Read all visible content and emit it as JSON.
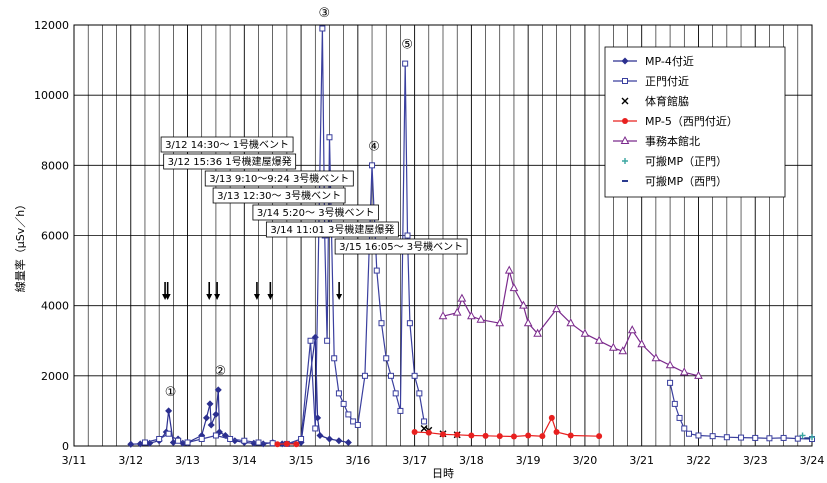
{
  "chart_data": {
    "type": "scatter",
    "title": "",
    "xlabel": "日時",
    "ylabel": "線量率（μSv／h）",
    "xlim": [
      "3/11",
      "3/24"
    ],
    "ylim": [
      0,
      12000
    ],
    "x_tick_labels": [
      "3/11",
      "3/12",
      "3/13",
      "3/14",
      "3/15",
      "3/16",
      "3/17",
      "3/18",
      "3/19",
      "3/20",
      "3/21",
      "3/22",
      "3/23",
      "3/24"
    ],
    "y_tick_labels": [
      "0",
      "2000",
      "4000",
      "6000",
      "8000",
      "10000",
      "12000"
    ],
    "grid": true,
    "legend_position": "top-right",
    "series": [
      {
        "name": "MP-4付近",
        "marker": "diamond",
        "color": "#2b2f8f",
        "points": [
          [
            "3/12 00:00",
            50
          ],
          [
            "3/12 04:00",
            60
          ],
          [
            "3/12 08:00",
            80
          ],
          [
            "3/12 12:00",
            150
          ],
          [
            "3/12 15:00",
            400
          ],
          [
            "3/12 16:00",
            1000
          ],
          [
            "3/12 18:00",
            100
          ],
          [
            "3/12 20:00",
            200
          ],
          [
            "3/12 22:00",
            80
          ],
          [
            "3/13 00:00",
            100
          ],
          [
            "3/13 06:00",
            300
          ],
          [
            "3/13 08:00",
            800
          ],
          [
            "3/13 09:30",
            1200
          ],
          [
            "3/13 10:00",
            600
          ],
          [
            "3/13 12:00",
            900
          ],
          [
            "3/13 13:00",
            1600
          ],
          [
            "3/13 13:30",
            400
          ],
          [
            "3/13 16:00",
            300
          ],
          [
            "3/13 20:00",
            150
          ],
          [
            "3/14 00:00",
            100
          ],
          [
            "3/14 04:00",
            80
          ],
          [
            "3/14 08:00",
            60
          ],
          [
            "3/14 12:00",
            100
          ],
          [
            "3/14 16:00",
            60
          ],
          [
            "3/15 00:00",
            100
          ],
          [
            "3/15 06:00",
            3100
          ],
          [
            "3/15 07:00",
            800
          ],
          [
            "3/15 08:00",
            300
          ],
          [
            "3/15 12:00",
            200
          ],
          [
            "3/15 16:00",
            150
          ],
          [
            "3/15 20:00",
            100
          ]
        ]
      },
      {
        "name": "正門付近",
        "marker": "square-open",
        "color": "#3a3f9e",
        "points": [
          [
            "3/12 06:00",
            100
          ],
          [
            "3/12 12:00",
            200
          ],
          [
            "3/12 16:00",
            350
          ],
          [
            "3/12 20:00",
            150
          ],
          [
            "3/13 00:00",
            100
          ],
          [
            "3/13 06:00",
            200
          ],
          [
            "3/13 12:00",
            300
          ],
          [
            "3/13 18:00",
            200
          ],
          [
            "3/14 00:00",
            150
          ],
          [
            "3/14 06:00",
            100
          ],
          [
            "3/14 12:00",
            80
          ],
          [
            "3/14 18:00",
            60
          ],
          [
            "3/15 00:00",
            200
          ],
          [
            "3/15 04:00",
            3000
          ],
          [
            "3/15 06:00",
            500
          ],
          [
            "3/15 09:00",
            11900
          ],
          [
            "3/15 10:00",
            6000
          ],
          [
            "3/15 11:00",
            3000
          ],
          [
            "3/15 12:00",
            8800
          ],
          [
            "3/15 14:00",
            2500
          ],
          [
            "3/15 16:00",
            1500
          ],
          [
            "3/15 18:00",
            1200
          ],
          [
            "3/15 20:00",
            900
          ],
          [
            "3/15 22:00",
            700
          ],
          [
            "3/16 00:00",
            600
          ],
          [
            "3/16 03:00",
            2000
          ],
          [
            "3/16 06:00",
            8000
          ],
          [
            "3/16 08:00",
            5000
          ],
          [
            "3/16 10:00",
            3500
          ],
          [
            "3/16 12:00",
            2500
          ],
          [
            "3/16 14:00",
            2000
          ],
          [
            "3/16 16:00",
            1500
          ],
          [
            "3/16 18:00",
            1000
          ],
          [
            "3/16 20:00",
            10900
          ],
          [
            "3/16 21:00",
            6000
          ],
          [
            "3/16 22:00",
            3500
          ],
          [
            "3/17 00:00",
            2000
          ],
          [
            "3/17 02:00",
            1500
          ],
          [
            "3/17 04:00",
            700
          ],
          [
            "3/21 12:00",
            1800
          ],
          [
            "3/21 14:00",
            1200
          ],
          [
            "3/21 16:00",
            800
          ],
          [
            "3/21 18:00",
            500
          ],
          [
            "3/21 20:00",
            350
          ],
          [
            "3/22 00:00",
            300
          ],
          [
            "3/22 06:00",
            280
          ],
          [
            "3/22 12:00",
            250
          ],
          [
            "3/22 18:00",
            240
          ],
          [
            "3/23 00:00",
            230
          ],
          [
            "3/23 06:00",
            220
          ],
          [
            "3/23 12:00",
            230
          ],
          [
            "3/23 18:00",
            210
          ],
          [
            "3/24 00:00",
            200
          ]
        ]
      },
      {
        "name": "体育館脇",
        "marker": "x",
        "color": "#000000",
        "points": [
          [
            "3/17 04:00",
            500
          ],
          [
            "3/17 06:00",
            450
          ],
          [
            "3/17 12:00",
            350
          ],
          [
            "3/17 18:00",
            320
          ]
        ]
      },
      {
        "name": "MP-5（西門付近）",
        "marker": "circle",
        "color": "#e8201f",
        "points": [
          [
            "3/14 14:00",
            50
          ],
          [
            "3/14 18:00",
            60
          ],
          [
            "3/14 22:00",
            50
          ],
          [
            "3/17 00:00",
            400
          ],
          [
            "3/17 06:00",
            380
          ],
          [
            "3/17 12:00",
            330
          ],
          [
            "3/17 18:00",
            320
          ],
          [
            "3/18 00:00",
            300
          ],
          [
            "3/18 06:00",
            290
          ],
          [
            "3/18 12:00",
            280
          ],
          [
            "3/18 18:00",
            270
          ],
          [
            "3/19 00:00",
            300
          ],
          [
            "3/19 06:00",
            280
          ],
          [
            "3/19 10:00",
            800
          ],
          [
            "3/19 12:00",
            400
          ],
          [
            "3/19 18:00",
            300
          ],
          [
            "3/20 06:00",
            280
          ]
        ]
      },
      {
        "name": "事務本館北",
        "marker": "triangle-open",
        "color": "#7b2a8c",
        "points": [
          [
            "3/17 12:00",
            3700
          ],
          [
            "3/17 18:00",
            3800
          ],
          [
            "3/17 20:00",
            4200
          ],
          [
            "3/18 00:00",
            3700
          ],
          [
            "3/18 04:00",
            3600
          ],
          [
            "3/18 12:00",
            3500
          ],
          [
            "3/18 16:00",
            5000
          ],
          [
            "3/18 18:00",
            4500
          ],
          [
            "3/18 22:00",
            4000
          ],
          [
            "3/19 00:00",
            3500
          ],
          [
            "3/19 04:00",
            3200
          ],
          [
            "3/19 12:00",
            3900
          ],
          [
            "3/19 18:00",
            3500
          ],
          [
            "3/20 00:00",
            3200
          ],
          [
            "3/20 06:00",
            3000
          ],
          [
            "3/20 12:00",
            2800
          ],
          [
            "3/20 16:00",
            2700
          ],
          [
            "3/20 20:00",
            3300
          ],
          [
            "3/21 00:00",
            2900
          ],
          [
            "3/21 06:00",
            2500
          ],
          [
            "3/21 12:00",
            2300
          ],
          [
            "3/21 18:00",
            2100
          ],
          [
            "3/22 00:00",
            2000
          ]
        ]
      },
      {
        "name": "可搬MP（正門）",
        "marker": "plus",
        "color": "#3aa6a0",
        "points": [
          [
            "3/23 20:00",
            300
          ],
          [
            "3/24 00:00",
            250
          ]
        ]
      },
      {
        "name": "可搬MP（西門）",
        "marker": "dash",
        "color": "#2a3a8f",
        "points": [
          [
            "3/23 22:00",
            220
          ]
        ]
      }
    ],
    "annotations": [
      {
        "text": "3/12 14:30～ 1号機ベント",
        "x": "3/12 14:30"
      },
      {
        "text": "3/12 15:36  1号機建屋爆発",
        "x": "3/12 15:36"
      },
      {
        "text": "3/13 9:10～9:24 3号機ベント",
        "x": "3/13 09:10"
      },
      {
        "text": "3/13 12:30～ 3号機ベント",
        "x": "3/13 12:30"
      },
      {
        "text": "3/14 5:20～ 3号機ベント",
        "x": "3/14 05:20"
      },
      {
        "text": "3/14 11:01  3号機建屋爆発",
        "x": "3/14 11:01"
      },
      {
        "text": "3/15 16:05～ 3号機ベント",
        "x": "3/15 16:05"
      }
    ],
    "numbered_markers": [
      {
        "label": "①",
        "x": "3/12 16:00",
        "y": 1000
      },
      {
        "label": "②",
        "x": "3/13 13:00",
        "y": 1600
      },
      {
        "label": "③",
        "x": "3/15 09:00",
        "y": 11900
      },
      {
        "label": "④",
        "x": "3/16 06:00",
        "y": 8000
      },
      {
        "label": "⑤",
        "x": "3/16 20:00",
        "y": 10900
      }
    ]
  }
}
